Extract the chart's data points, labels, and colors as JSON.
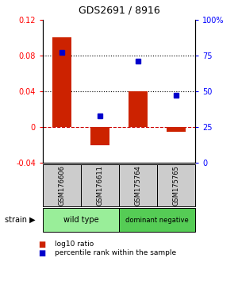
{
  "title": "GDS2691 / 8916",
  "samples": [
    "GSM176606",
    "GSM176611",
    "GSM175764",
    "GSM175765"
  ],
  "log10_ratio": [
    0.1,
    -0.02,
    0.04,
    -0.005
  ],
  "percentile_rank": [
    77,
    33,
    71,
    47
  ],
  "groups": [
    {
      "label": "wild type",
      "samples": [
        0,
        1
      ],
      "color": "#99ee99"
    },
    {
      "label": "dominant negative",
      "samples": [
        2,
        3
      ],
      "color": "#55cc55"
    }
  ],
  "bar_color": "#cc2200",
  "dot_color": "#0000cc",
  "ylim_left": [
    -0.04,
    0.12
  ],
  "ylim_right": [
    0,
    100
  ],
  "yticks_left": [
    -0.04,
    0,
    0.04,
    0.08,
    0.12
  ],
  "yticks_right": [
    0,
    25,
    50,
    75,
    100
  ],
  "ytick_right_labels": [
    "0",
    "25",
    "50",
    "75",
    "100%"
  ],
  "hline_y_left": [
    0.0,
    0.04,
    0.08
  ],
  "hline_styles": [
    "dashed",
    "dotted",
    "dotted"
  ],
  "hline_colors": [
    "#cc0000",
    "#000000",
    "#000000"
  ],
  "group_label": "strain"
}
